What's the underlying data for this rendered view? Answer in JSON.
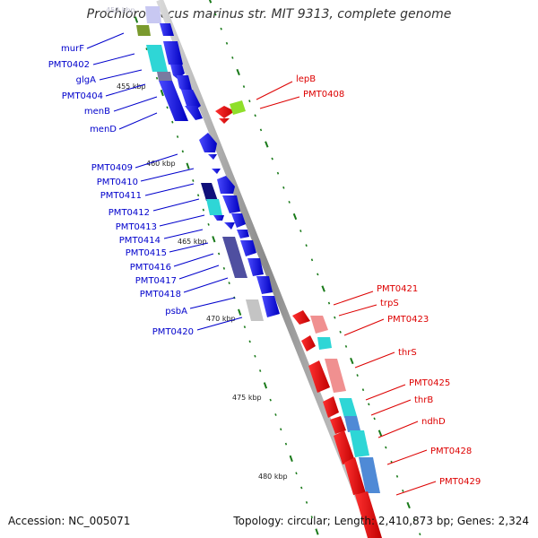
{
  "title": "Prochlorococcus marinus str. MIT 9313, complete genome",
  "footer": {
    "accession": "Accession: NC_005071",
    "summary": "Topology: circular; Length: 2,410,873 bp; Genes: 2,324"
  },
  "colors": {
    "forward": "#0000ee",
    "reverse": "#e80000",
    "backbone": "#8c8c8c",
    "tick": "#1a7a1a",
    "cyan": "#2ed6d6",
    "slate": "#4f4fa0",
    "gray": "#c4c4c4",
    "lime": "#8fdf2a",
    "olive": "#7a9a2e"
  },
  "kbp_labels": [
    "455 kbp",
    "460 kbp",
    "465 kbp",
    "470 kbp",
    "475 kbp",
    "480 kbp"
  ],
  "left_labels": [
    "murF",
    "PMT0402",
    "glgA",
    "PMT0404",
    "menB",
    "menD",
    "PMT0409",
    "PMT0410",
    "PMT0411",
    "PMT0412",
    "PMT0413",
    "PMT0414",
    "PMT0415",
    "PMT0416",
    "PMT0417",
    "PMT0418",
    "psbA",
    "PMT0420"
  ],
  "right_labels": [
    "lepB",
    "PMT0408",
    "PMT0421",
    "trpS",
    "PMT0423",
    "thrS",
    "PMT0425",
    "thrB",
    "ndhD",
    "PMT0428",
    "PMT0429"
  ]
}
